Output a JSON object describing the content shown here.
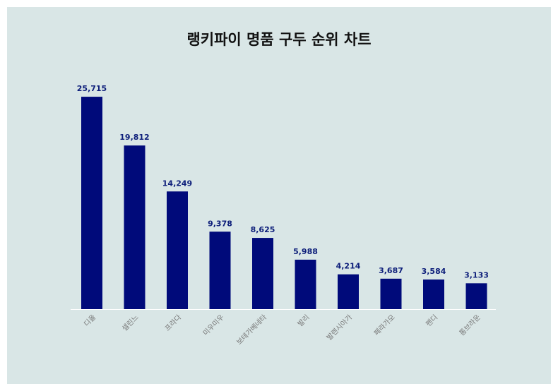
{
  "chart_data": {
    "type": "bar",
    "title": "랭키파이 명품 구두 순위 차트",
    "categories": [
      "디올",
      "셀린느",
      "프라다",
      "미우미우",
      "보테가베네타",
      "발리",
      "발렌시아가",
      "페라가모",
      "펜디",
      "톰브라운"
    ],
    "values": [
      25715,
      19812,
      14249,
      9378,
      8625,
      5988,
      4214,
      3687,
      3584,
      3133
    ],
    "value_labels": [
      "25,715",
      "19,812",
      "14,249",
      "9,378",
      "8,625",
      "5,988",
      "4,214",
      "3,687",
      "3,584",
      "3,133"
    ],
    "xlabel": "",
    "ylabel": "",
    "ylim": [
      0,
      26000
    ],
    "grid": false,
    "legend": "none",
    "colors": {
      "bar": "#000a7a",
      "panel": "#d9e6e6",
      "axis": "#ffffff"
    }
  }
}
